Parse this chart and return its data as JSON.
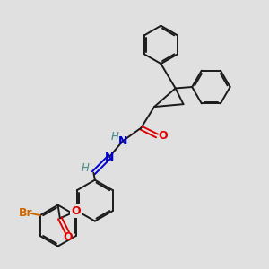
{
  "background_color": "#e0e0e0",
  "bond_color": "#1a1a1a",
  "figsize": [
    3.0,
    3.0
  ],
  "dpi": 100,
  "atom_colors": {
    "O": "#dd0000",
    "N": "#0000cc",
    "Br": "#cc6600",
    "H_teal": "#448888"
  },
  "lw": 1.4
}
